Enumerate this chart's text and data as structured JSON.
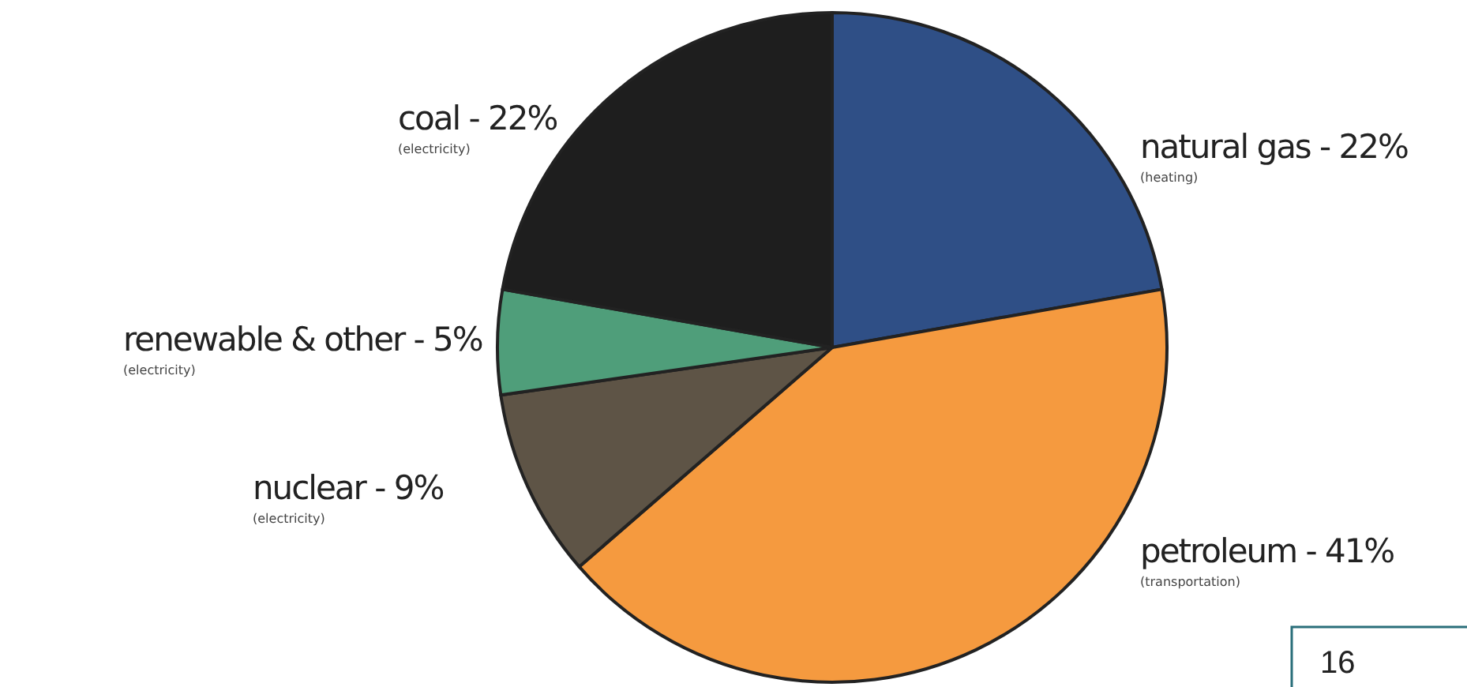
{
  "chart_data": {
    "type": "pie",
    "categories": [
      "natural gas - 22%",
      "petroleum - 41%",
      "nuclear - 9%",
      "renewable & other - 5%",
      "coal - 22%"
    ],
    "values": [
      22,
      41,
      9,
      5,
      22
    ],
    "colors": [
      "#2f4f86",
      "#f59a3f",
      "#5e5446",
      "#4f9e7a",
      "#1e1e1e"
    ],
    "annotations": [
      "(heating)",
      "(transportation)",
      "(electricity)",
      "(electricity)",
      "(electricity)",
      "16"
    ]
  }
}
